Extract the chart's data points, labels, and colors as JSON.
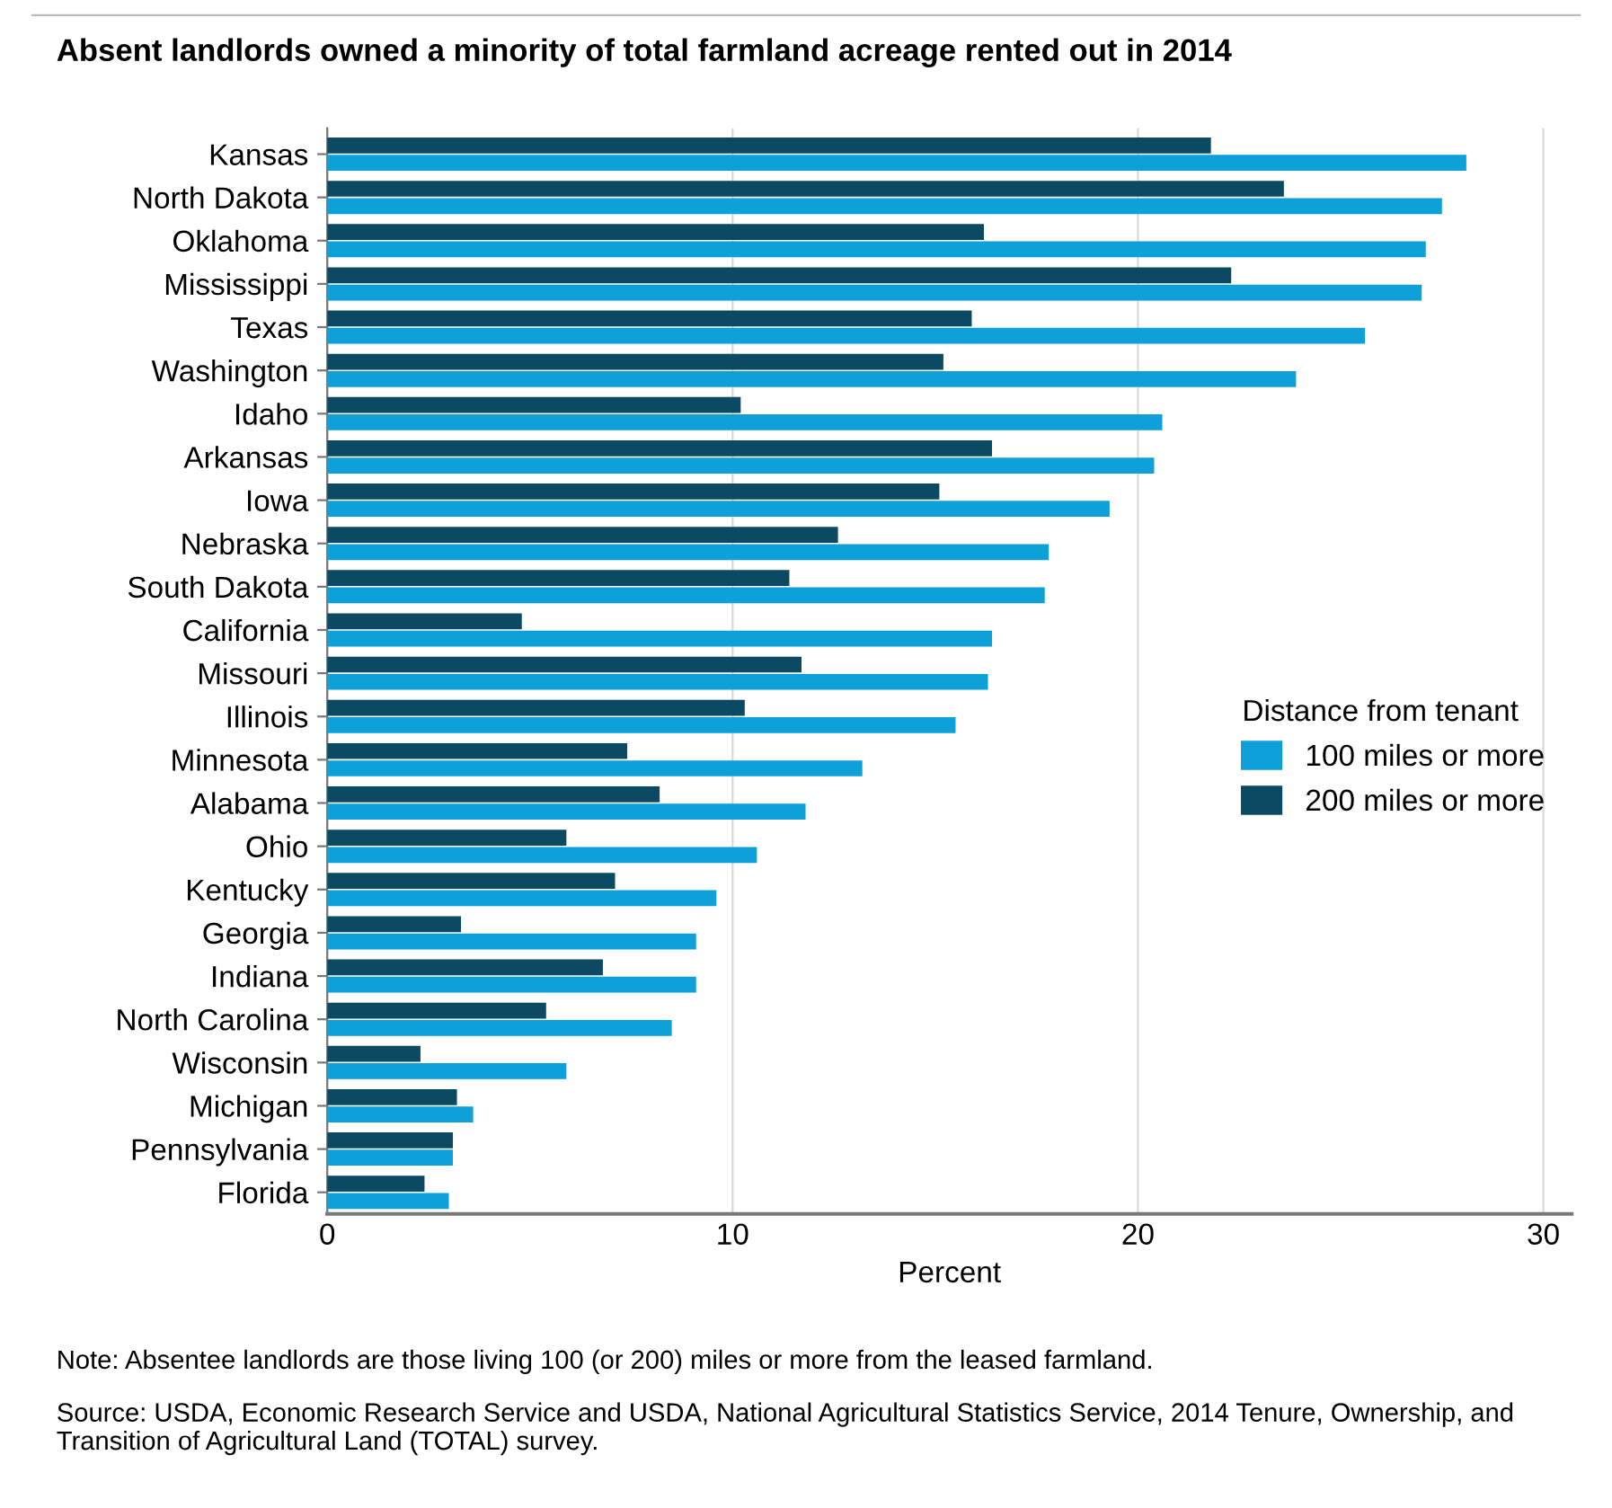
{
  "chart_data": {
    "type": "bar",
    "orientation": "horizontal",
    "title": "Absent landlords owned a minority of total farmland acreage rented out in 2014",
    "xlabel": "Percent",
    "legend_title": "Distance from tenant",
    "legend": "right",
    "grid": "x",
    "categories": [
      "Kansas",
      "North Dakota",
      "Oklahoma",
      "Mississippi",
      "Texas",
      "Washington",
      "Idaho",
      "Arkansas",
      "Iowa",
      "Nebraska",
      "South Dakota",
      "California",
      "Missouri",
      "Illinois",
      "Minnesota",
      "Alabama",
      "Ohio",
      "Kentucky",
      "Georgia",
      "Indiana",
      "North Carolina",
      "Wisconsin",
      "Michigan",
      "Pennsylvania",
      "Florida"
    ],
    "series": [
      {
        "name": "100 miles or more",
        "color": "#0ea0d8",
        "values": [
          28.1,
          27.5,
          27.1,
          27.0,
          25.6,
          23.9,
          20.6,
          20.4,
          19.3,
          17.8,
          17.7,
          16.4,
          16.3,
          15.5,
          13.2,
          11.8,
          10.6,
          9.6,
          9.1,
          9.1,
          8.5,
          5.9,
          3.6,
          3.1,
          3.0
        ]
      },
      {
        "name": "200 miles or more",
        "color": "#0c4a63",
        "values": [
          21.8,
          23.6,
          16.2,
          22.3,
          15.9,
          15.2,
          10.2,
          16.4,
          15.1,
          12.6,
          11.4,
          4.8,
          11.7,
          10.3,
          7.4,
          8.2,
          5.9,
          7.1,
          3.3,
          6.8,
          5.4,
          2.3,
          3.2,
          3.1,
          2.4
        ]
      }
    ],
    "xlim": [
      0,
      30.7
    ],
    "xticks": [
      0,
      10,
      20,
      30
    ],
    "annotations": [
      "Note: Absentee landlords are those living 100 (or 200) miles or more from the leased farmland.",
      "Source: USDA, Economic Research Service and USDA, National Agricultural Statistics Service, 2014 Tenure, Ownership, and Transition of Agricultural Land (TOTAL) survey."
    ]
  }
}
